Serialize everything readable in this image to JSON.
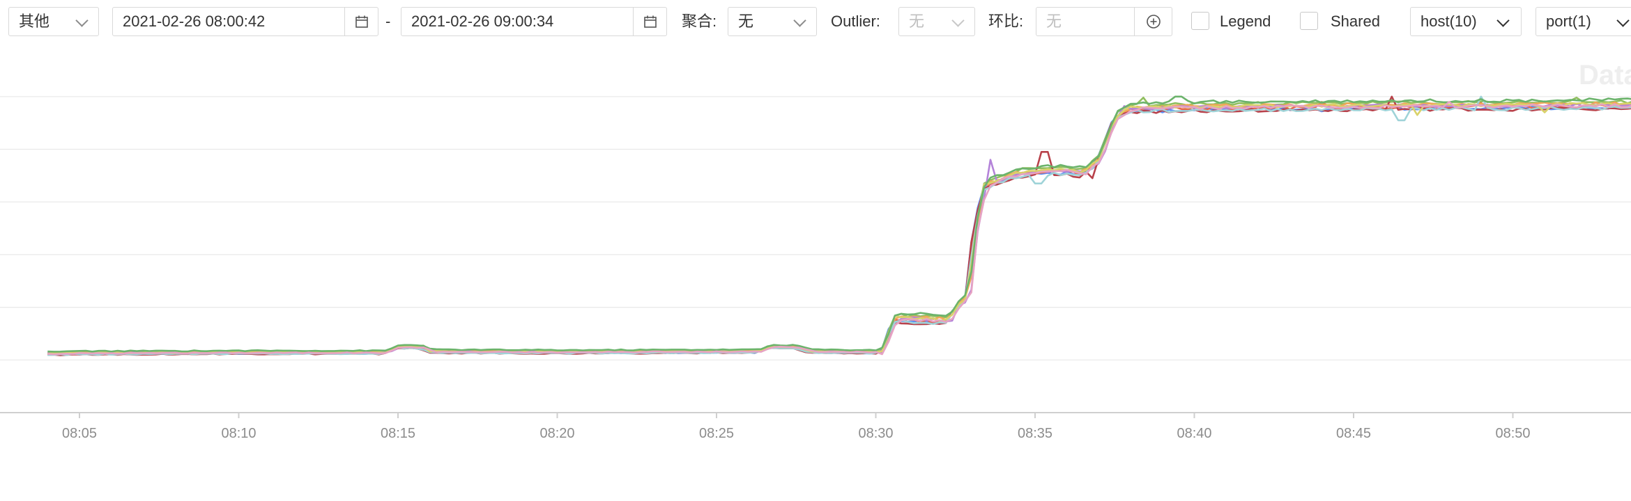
{
  "toolbar": {
    "type_select": "其他",
    "time_start": "2021-02-26 08:00:42",
    "time_separator": "-",
    "time_end": "2021-02-26 09:00:34",
    "aggregate_label": "聚合:",
    "aggregate_value": "无",
    "outlier_label": "Outlier:",
    "outlier_value": "无",
    "ratio_label": "环比:",
    "ratio_placeholder": "无",
    "legend_label": "Legend",
    "shared_label": "Shared",
    "host_select": "host(10)",
    "port_select": "port(1)"
  },
  "watermark": "Data",
  "colors": {
    "border": "#d9d9d9",
    "grid": "#e8e8e8",
    "axis": "#cfcfcf",
    "tick_text": "#8c8c8c"
  },
  "chart_data": {
    "type": "line",
    "x_ticks": [
      "08:05",
      "08:10",
      "08:15",
      "08:20",
      "08:25",
      "08:30",
      "08:35",
      "08:40",
      "08:45",
      "08:50"
    ],
    "x_range_min": [
      4,
      55.5
    ],
    "y_range": [
      0,
      7
    ],
    "y_gridlines": [
      1,
      2,
      3,
      4,
      5,
      6,
      7
    ],
    "y_tick_labels_visible": false,
    "legend": "hidden",
    "baseline_profile": [
      [
        4,
        1.12
      ],
      [
        5,
        1.13
      ],
      [
        10,
        1.14
      ],
      [
        14.6,
        1.14
      ],
      [
        15,
        1.25
      ],
      [
        15.8,
        1.24
      ],
      [
        16,
        1.16
      ],
      [
        20,
        1.15
      ],
      [
        25,
        1.16
      ],
      [
        26.3,
        1.16
      ],
      [
        26.7,
        1.25
      ],
      [
        27.5,
        1.24
      ],
      [
        28,
        1.16
      ],
      [
        30.2,
        1.15
      ],
      [
        30.6,
        1.8
      ],
      [
        32.3,
        1.75
      ],
      [
        32.5,
        2.0
      ],
      [
        32.9,
        2.2
      ],
      [
        33.1,
        3.4
      ],
      [
        33.4,
        4.3
      ],
      [
        34,
        4.45
      ],
      [
        34.5,
        4.55
      ],
      [
        36,
        4.6
      ],
      [
        36.5,
        4.55
      ],
      [
        37,
        4.8
      ],
      [
        37.5,
        5.6
      ],
      [
        38,
        5.78
      ],
      [
        40,
        5.8
      ],
      [
        45,
        5.82
      ],
      [
        50,
        5.83
      ],
      [
        55.5,
        5.85
      ]
    ],
    "series": [
      {
        "color": "#5b8ff9",
        "offset": -0.04,
        "spikes": [
          [
            39,
            5.7
          ],
          [
            44,
            5.72
          ]
        ]
      },
      {
        "color": "#e8684a",
        "offset": -0.02,
        "spikes": [
          [
            49,
            5.88
          ],
          [
            44,
            5.9
          ]
        ]
      },
      {
        "color": "#8fbe5e",
        "offset": 0.05,
        "spikes": [
          [
            38.4,
            5.98
          ],
          [
            52,
            5.98
          ]
        ]
      },
      {
        "color": "#f2a65a",
        "offset": 0.02,
        "spikes": [
          [
            46,
            5.85
          ]
        ]
      },
      {
        "color": "#b483d9",
        "offset": 0.0,
        "spikes": [
          [
            33.6,
            4.8
          ],
          [
            37.8,
            5.82
          ]
        ]
      },
      {
        "color": "#b8414a",
        "offset": -0.06,
        "spikes": [
          [
            35.3,
            4.95
          ],
          [
            46.2,
            6.0
          ],
          [
            36.8,
            4.45
          ]
        ]
      },
      {
        "color": "#9fd3d8",
        "offset": -0.05,
        "spikes": [
          [
            46.5,
            5.55
          ],
          [
            49,
            6.0
          ],
          [
            35.1,
            4.35
          ]
        ]
      },
      {
        "color": "#d9d26a",
        "offset": 0.01,
        "spikes": [
          [
            47,
            5.65
          ],
          [
            51,
            5.7
          ]
        ]
      },
      {
        "color": "#6bb36b",
        "offset": 0.08,
        "spikes": [
          [
            39.5,
            6.0
          ],
          [
            54,
            6.0
          ]
        ]
      },
      {
        "color": "#e6a3c3",
        "offset": -0.01,
        "spikes": [
          [
            43,
            5.84
          ],
          [
            48,
            5.9
          ]
        ]
      }
    ]
  }
}
